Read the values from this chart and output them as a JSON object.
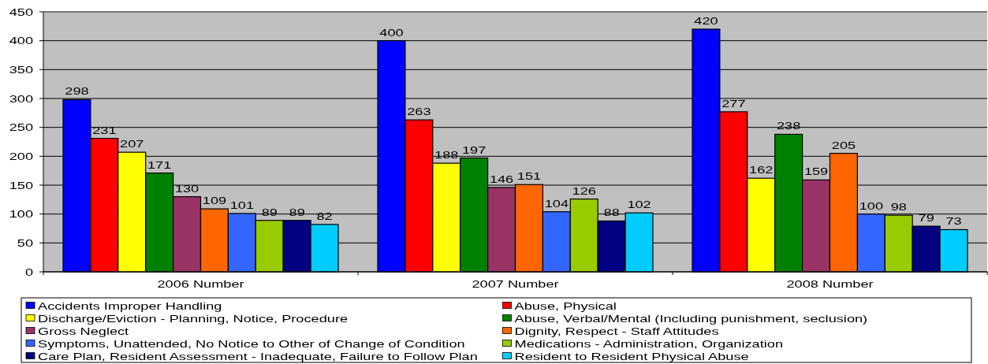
{
  "chart_data": {
    "type": "bar",
    "categories": [
      "2006 Number",
      "2007 Number",
      "2008 Number"
    ],
    "series": [
      {
        "name": "Accidents Improper Handling",
        "color": "#0000ff",
        "values": [
          298,
          400,
          420
        ]
      },
      {
        "name": "Abuse, Physical",
        "color": "#ff0000",
        "values": [
          231,
          263,
          277
        ]
      },
      {
        "name": "Discharge/Eviction - Planning, Notice, Procedure",
        "color": "#ffff00",
        "values": [
          207,
          188,
          162
        ]
      },
      {
        "name": "Abuse, Verbal/Mental (Including punishment, seclusion)",
        "color": "#008000",
        "values": [
          171,
          197,
          238
        ]
      },
      {
        "name": "Gross Neglect",
        "color": "#993366",
        "values": [
          130,
          146,
          159
        ]
      },
      {
        "name": "Dignity, Respect - Staff Attitudes",
        "color": "#ff6600",
        "values": [
          109,
          151,
          205
        ]
      },
      {
        "name": "Symptoms, Unattended, No Notice to Other of Change of Condition",
        "color": "#3366ff",
        "values": [
          101,
          104,
          100
        ]
      },
      {
        "name": "Medications - Administration, Organization",
        "color": "#99cc00",
        "values": [
          89,
          126,
          98
        ]
      },
      {
        "name": "Care Plan, Resident Assessment - Inadequate, Failure to Follow Plan",
        "color": "#000080",
        "values": [
          89,
          88,
          79
        ]
      },
      {
        "name": "Resident to Resident Physical Abuse",
        "color": "#00ccff",
        "values": [
          82,
          102,
          73
        ]
      }
    ],
    "ylim": [
      0,
      450
    ],
    "yticks": [
      0,
      50,
      100,
      150,
      200,
      250,
      300,
      350,
      400,
      450
    ],
    "grid": "y",
    "legend": "bottom",
    "data_labels": true
  }
}
